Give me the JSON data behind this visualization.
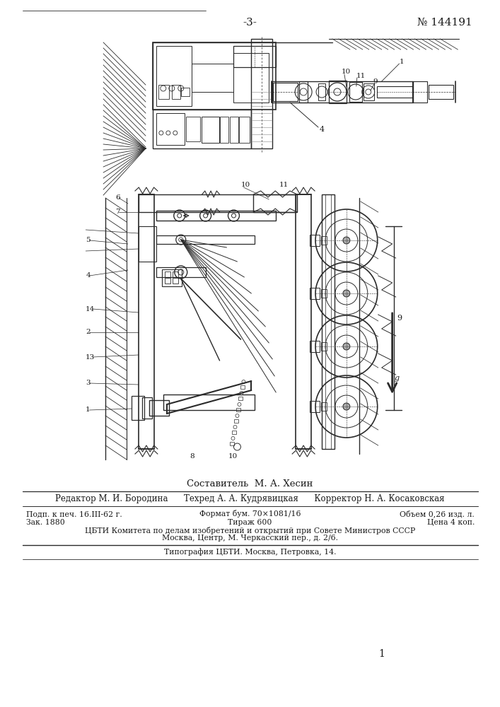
{
  "page_number": "-3-",
  "patent_number": "№ 144191",
  "bg_color": "#ffffff",
  "line_color": "#2a2a2a",
  "text_color": "#1a1a1a",
  "composer_text": "Составитель  М. А. Хесин",
  "editor_line": "Редактор М. И. Бородина      Техред А. А. Кудрявицкая      Корректор Н. А. Косаковская",
  "info_line1_left": "Подп. к печ. 16.III-62 г.",
  "info_line1_mid": "Формат бум. 70×1081/16",
  "info_line1_right": "Объем 0,26 изд. л.",
  "info_line2_left": "Зак. 1880",
  "info_line2_mid": "Тираж 600",
  "info_line2_right": "Цена 4 коп.",
  "info_line3": "ЦБТИ Комитета по делам изобретений и открытий при Совете Министров СССР",
  "info_line4": "Москва, Центр, М. Черкасский пер., д. 2/6.",
  "typography_line": "Типография ЦБТИ. Москва, Петровка, 14.",
  "page_num_bottom": "1"
}
